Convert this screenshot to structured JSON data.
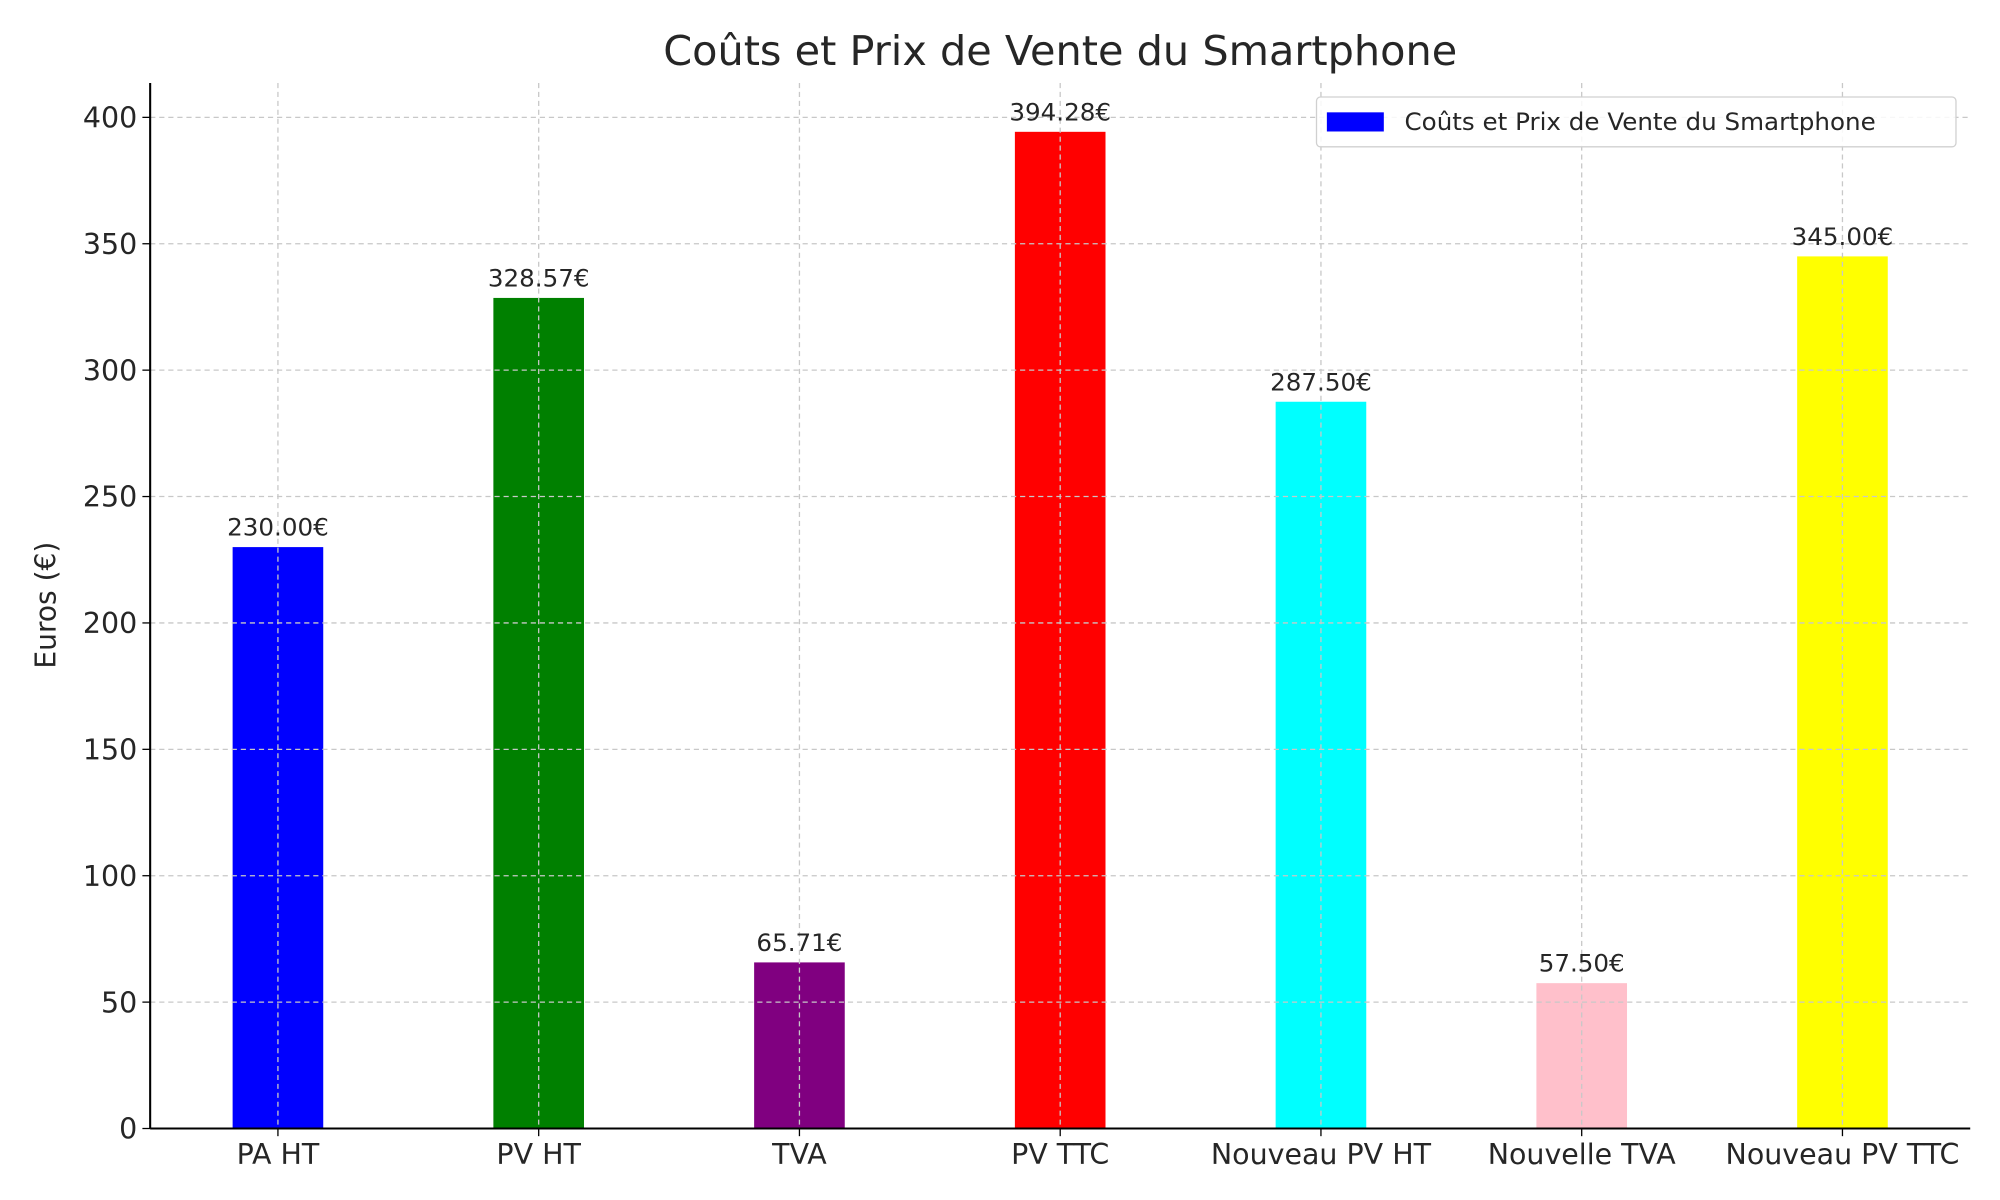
{
  "chart_data": {
    "type": "bar",
    "title": "Coûts et Prix de Vente du Smartphone",
    "xlabel": "",
    "ylabel": "Euros (€)",
    "categories": [
      "PA HT",
      "PV HT",
      "TVA",
      "PV TTC",
      "Nouveau PV HT",
      "Nouvelle TVA",
      "Nouveau PV TTC"
    ],
    "values": [
      230.0,
      328.57,
      65.71,
      394.28,
      287.5,
      57.5,
      345.0
    ],
    "data_labels": [
      "230.00€",
      "328.57€",
      "65.71€",
      "394.28€",
      "287.50€",
      "57.50€",
      "345.00€"
    ],
    "colors": [
      "#0000ff",
      "#008000",
      "#800080",
      "#ff0000",
      "#00ffff",
      "#ffc0cb",
      "#ffff00"
    ],
    "ylim": [
      0,
      413.6
    ],
    "yticks": [
      0,
      50,
      100,
      150,
      200,
      250,
      300,
      350,
      400
    ],
    "grid": true,
    "legend": {
      "placement": "top-right",
      "entries": [
        {
          "label": "Coûts et Prix de Vente du Smartphone",
          "color": "#0000ff"
        }
      ]
    }
  }
}
